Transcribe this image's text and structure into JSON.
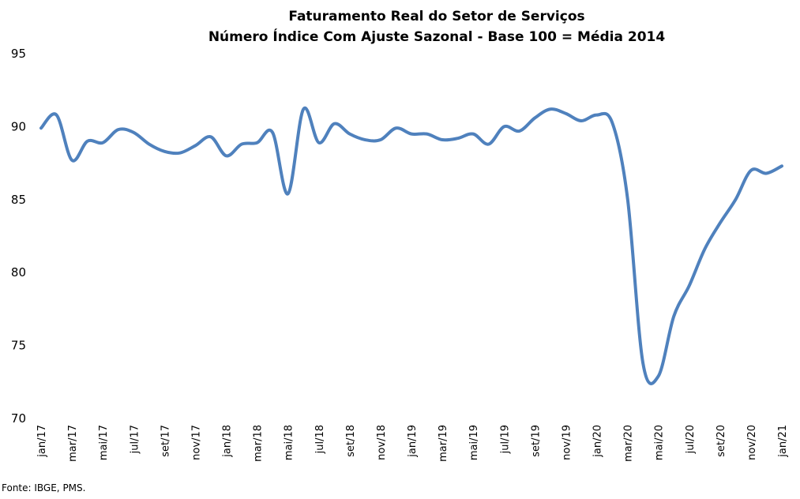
{
  "chart_data": {
    "type": "line",
    "title": "Faturamento Real do Setor de Serviços",
    "subtitle": "Número Índice Com Ajuste Sazonal - Base 100 = Média 2014",
    "xlabel": "",
    "ylabel": "",
    "ylim": [
      70,
      95
    ],
    "yticks": [
      "95",
      "90",
      "85",
      "80",
      "75",
      "70"
    ],
    "grid": false,
    "legend": "none",
    "line_color": "#4f81bd",
    "x_tick_labels": [
      "jan/17",
      "mar/17",
      "mai/17",
      "jul/17",
      "set/17",
      "nov/17",
      "jan/18",
      "mar/18",
      "mai/18",
      "jul/18",
      "set/18",
      "nov/18",
      "jan/19",
      "mar/19",
      "mai/19",
      "jul/19",
      "set/19",
      "nov/19",
      "jan/20",
      "mar/20",
      "mai/20",
      "jul/20",
      "set/20",
      "nov/20",
      "jan/21"
    ],
    "series": [
      {
        "name": "Faturamento Real do Setor de Serviços",
        "values": [
          89.9,
          90.8,
          87.7,
          89.0,
          88.9,
          89.8,
          89.6,
          88.8,
          88.3,
          88.2,
          88.7,
          89.3,
          88.0,
          88.8,
          88.9,
          89.6,
          85.4,
          91.2,
          88.9,
          90.2,
          89.5,
          89.1,
          89.1,
          89.9,
          89.5,
          89.5,
          89.1,
          89.2,
          89.5,
          88.8,
          90.0,
          89.7,
          90.6,
          91.2,
          90.9,
          90.4,
          90.8,
          90.3,
          85.1,
          73.8,
          72.9,
          77.0,
          79.1,
          81.6,
          83.4,
          85.0,
          87.0,
          86.8,
          87.3
        ]
      }
    ]
  },
  "source": "Fonte: IBGE, PMS."
}
